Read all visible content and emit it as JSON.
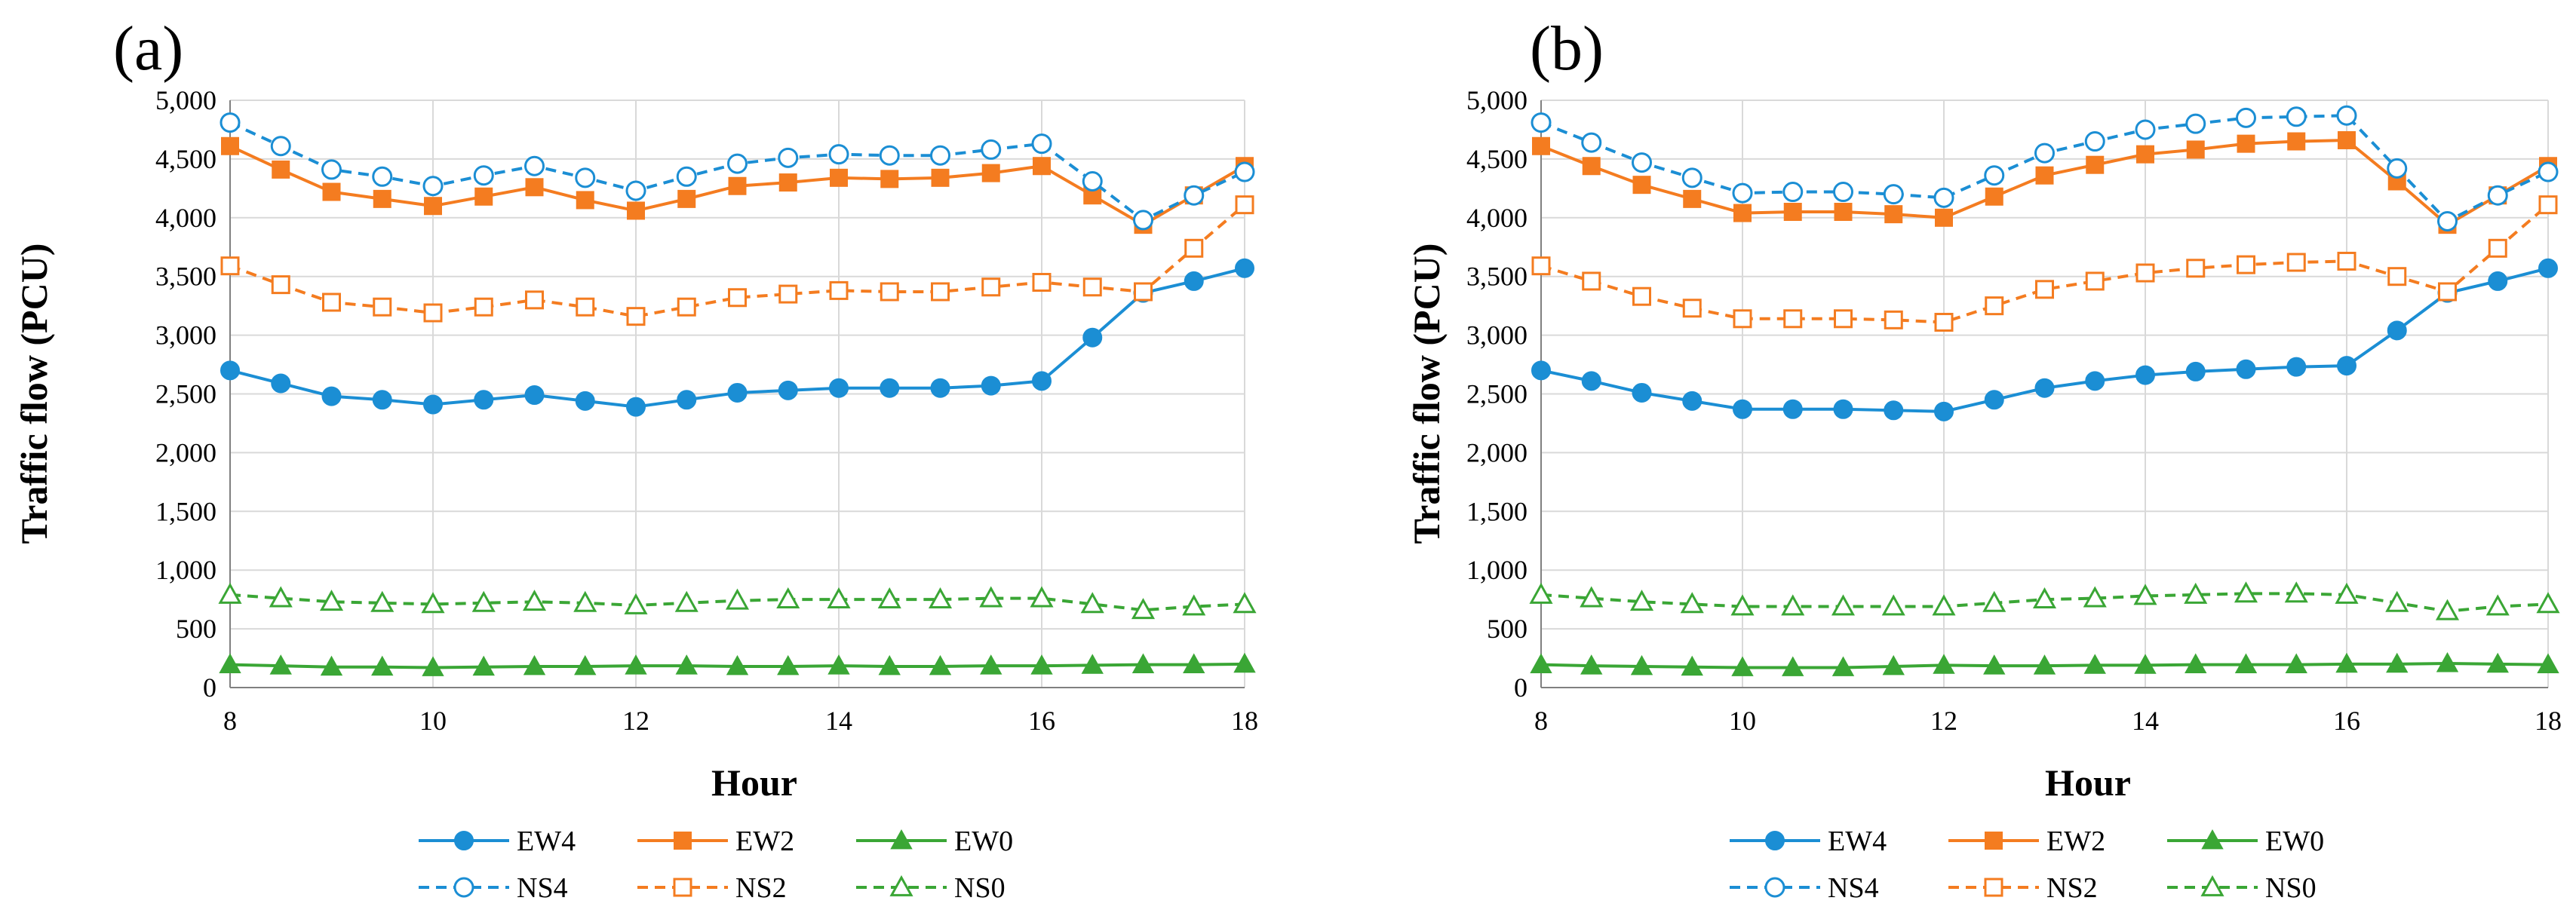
{
  "chart_data": [
    {
      "type": "line",
      "panel_label": "(a)",
      "xlabel": "Hour",
      "ylabel": "Traffic flow  (PCU)",
      "xlim": [
        8,
        18
      ],
      "ylim": [
        0,
        5000
      ],
      "x_ticks": [
        "8",
        "10",
        "12",
        "14",
        "16",
        "18"
      ],
      "y_ticks": [
        "0",
        "500",
        "1,000",
        "1,500",
        "2,000",
        "2,500",
        "3,000",
        "3,500",
        "4,000",
        "4,500",
        "5,000"
      ],
      "grid": true,
      "legend_position": "bottom",
      "x": [
        8,
        8.5,
        9,
        9.5,
        10,
        10.5,
        11,
        11.5,
        12,
        12.5,
        13,
        13.5,
        14,
        14.5,
        15,
        15.5,
        16,
        16.5,
        17,
        17.5,
        18
      ],
      "series": [
        {
          "name": "EW4",
          "color": "#1b8ed4",
          "marker": "circle",
          "filled": true,
          "dashed": false,
          "values": [
            2700,
            2590,
            2480,
            2450,
            2410,
            2450,
            2490,
            2440,
            2390,
            2450,
            2510,
            2530,
            2550,
            2550,
            2550,
            2570,
            2610,
            2980,
            3360,
            3460,
            3570
          ]
        },
        {
          "name": "EW2",
          "color": "#f47c20",
          "marker": "square",
          "filled": true,
          "dashed": false,
          "values": [
            4610,
            4410,
            4220,
            4160,
            4100,
            4180,
            4260,
            4150,
            4060,
            4160,
            4270,
            4300,
            4340,
            4330,
            4340,
            4380,
            4440,
            4190,
            3940,
            4190,
            4440
          ]
        },
        {
          "name": "EW0",
          "color": "#3aa635",
          "marker": "triangle",
          "filled": true,
          "dashed": false,
          "values": [
            195,
            185,
            175,
            175,
            170,
            175,
            180,
            180,
            185,
            185,
            180,
            180,
            185,
            180,
            180,
            185,
            185,
            190,
            195,
            195,
            200
          ]
        },
        {
          "name": "NS4",
          "color": "#1b8ed4",
          "marker": "circle",
          "filled": false,
          "dashed": true,
          "values": [
            4810,
            4610,
            4410,
            4350,
            4270,
            4360,
            4440,
            4340,
            4230,
            4350,
            4460,
            4510,
            4540,
            4530,
            4530,
            4580,
            4630,
            4310,
            3980,
            4190,
            4390
          ]
        },
        {
          "name": "NS2",
          "color": "#f47c20",
          "marker": "square",
          "filled": false,
          "dashed": true,
          "values": [
            3590,
            3430,
            3280,
            3240,
            3190,
            3240,
            3300,
            3240,
            3160,
            3240,
            3320,
            3350,
            3380,
            3370,
            3370,
            3410,
            3450,
            3410,
            3370,
            3740,
            4110
          ]
        },
        {
          "name": "NS0",
          "color": "#3aa635",
          "marker": "triangle",
          "filled": false,
          "dashed": true,
          "values": [
            790,
            760,
            730,
            720,
            710,
            720,
            730,
            720,
            700,
            720,
            740,
            750,
            750,
            750,
            750,
            760,
            760,
            710,
            660,
            690,
            710
          ]
        }
      ],
      "legend": [
        [
          "EW4",
          "EW2",
          "EW0"
        ],
        [
          "NS4",
          "NS2",
          "NS0"
        ]
      ]
    },
    {
      "type": "line",
      "panel_label": "(b)",
      "xlabel": "Hour",
      "ylabel": "Traffic flow  (PCU)",
      "xlim": [
        8,
        18
      ],
      "ylim": [
        0,
        5000
      ],
      "x_ticks": [
        "8",
        "10",
        "12",
        "14",
        "16",
        "18"
      ],
      "y_ticks": [
        "0",
        "500",
        "1,000",
        "1,500",
        "2,000",
        "2,500",
        "3,000",
        "3,500",
        "4,000",
        "4,500",
        "5,000"
      ],
      "grid": true,
      "legend_position": "bottom",
      "x": [
        8,
        8.5,
        9,
        9.5,
        10,
        10.5,
        11,
        11.5,
        12,
        12.5,
        13,
        13.5,
        14,
        14.5,
        15,
        15.5,
        16,
        16.5,
        17,
        17.5,
        18
      ],
      "series": [
        {
          "name": "EW4",
          "color": "#1b8ed4",
          "marker": "circle",
          "filled": true,
          "dashed": false,
          "values": [
            2700,
            2610,
            2510,
            2440,
            2370,
            2370,
            2370,
            2360,
            2350,
            2450,
            2550,
            2610,
            2660,
            2690,
            2710,
            2730,
            2740,
            3040,
            3360,
            3460,
            3570
          ]
        },
        {
          "name": "EW2",
          "color": "#f47c20",
          "marker": "square",
          "filled": true,
          "dashed": false,
          "values": [
            4610,
            4440,
            4280,
            4160,
            4040,
            4050,
            4050,
            4030,
            4000,
            4180,
            4360,
            4450,
            4540,
            4580,
            4630,
            4650,
            4660,
            4310,
            3940,
            4190,
            4440
          ]
        },
        {
          "name": "EW0",
          "color": "#3aa635",
          "marker": "triangle",
          "filled": true,
          "dashed": false,
          "values": [
            195,
            185,
            180,
            175,
            170,
            170,
            170,
            180,
            190,
            185,
            185,
            190,
            190,
            195,
            195,
            195,
            200,
            200,
            205,
            200,
            195
          ]
        },
        {
          "name": "NS4",
          "color": "#1b8ed4",
          "marker": "circle",
          "filled": false,
          "dashed": true,
          "values": [
            4810,
            4640,
            4470,
            4340,
            4210,
            4220,
            4220,
            4200,
            4170,
            4360,
            4550,
            4650,
            4750,
            4800,
            4850,
            4860,
            4870,
            4420,
            3970,
            4190,
            4390
          ]
        },
        {
          "name": "NS2",
          "color": "#f47c20",
          "marker": "square",
          "filled": false,
          "dashed": true,
          "values": [
            3590,
            3460,
            3330,
            3230,
            3140,
            3140,
            3140,
            3130,
            3110,
            3250,
            3390,
            3460,
            3530,
            3570,
            3600,
            3620,
            3630,
            3500,
            3370,
            3740,
            4110
          ]
        },
        {
          "name": "NS0",
          "color": "#3aa635",
          "marker": "triangle",
          "filled": false,
          "dashed": true,
          "values": [
            790,
            760,
            730,
            710,
            690,
            690,
            690,
            690,
            690,
            720,
            750,
            760,
            780,
            790,
            800,
            800,
            790,
            720,
            650,
            690,
            710
          ]
        }
      ],
      "legend": [
        [
          "EW4",
          "EW2",
          "EW0"
        ],
        [
          "NS4",
          "NS2",
          "NS0"
        ]
      ]
    }
  ]
}
